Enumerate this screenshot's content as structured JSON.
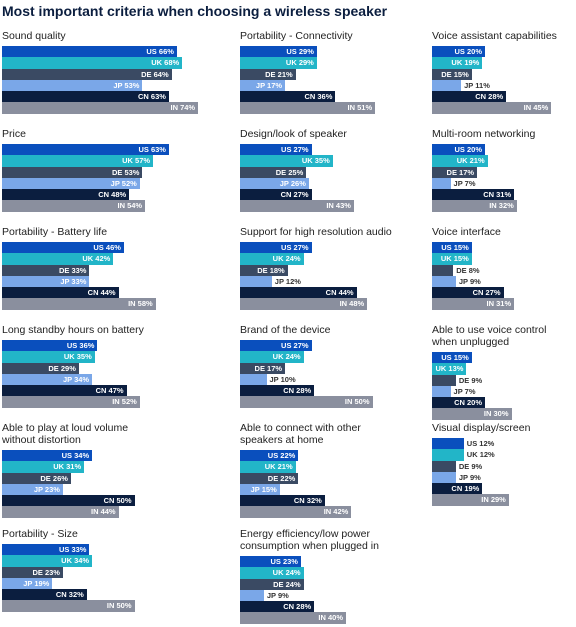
{
  "title": "Most important criteria when choosing a wireless speaker",
  "chart_data": [
    {
      "type": "bar",
      "title": "Sound quality",
      "values": [
        66,
        68,
        64,
        53,
        63,
        74
      ],
      "value_labels": [
        "US 66%",
        "UK 68%",
        "DE 64%",
        "JP 53%",
        "CN 63%",
        "IN 74%"
      ],
      "colors": [
        "#0a4fbd",
        "#22b5c8",
        "#3a4a63",
        "#7aa7e8",
        "#0b1e3f",
        "#8a8f9e"
      ]
    },
    {
      "type": "bar",
      "title": "Price",
      "values": [
        63,
        57,
        53,
        52,
        48,
        54
      ],
      "value_labels": [
        "US 63%",
        "UK 57%",
        "DE 53%",
        "JP 52%",
        "CN 48%",
        "IN 54%"
      ],
      "colors": [
        "#0a4fbd",
        "#22b5c8",
        "#3a4a63",
        "#7aa7e8",
        "#0b1e3f",
        "#8a8f9e"
      ]
    },
    {
      "type": "bar",
      "title": "Portability - Battery life",
      "values": [
        46,
        42,
        33,
        33,
        44,
        58
      ],
      "value_labels": [
        "US 46%",
        "UK 42%",
        "DE 33%",
        "JP 33%",
        "CN 44%",
        "IN 58%"
      ],
      "colors": [
        "#0a4fbd",
        "#22b5c8",
        "#3a4a63",
        "#7aa7e8",
        "#0b1e3f",
        "#8a8f9e"
      ]
    },
    {
      "type": "bar",
      "title": "Long standby hours on battery",
      "values": [
        36,
        35,
        29,
        34,
        47,
        52
      ],
      "value_labels": [
        "US 36%",
        "UK 35%",
        "DE 29%",
        "JP 34%",
        "CN 47%",
        "IN 52%"
      ],
      "colors": [
        "#0a4fbd",
        "#22b5c8",
        "#3a4a63",
        "#7aa7e8",
        "#0b1e3f",
        "#8a8f9e"
      ]
    },
    {
      "type": "bar",
      "title": "Able to play at loud volume\nwithout distortion",
      "values": [
        34,
        31,
        26,
        23,
        50,
        44
      ],
      "value_labels": [
        "US 34%",
        "UK 31%",
        "DE 26%",
        "JP 23%",
        "CN 50%",
        "IN 44%"
      ],
      "colors": [
        "#0a4fbd",
        "#22b5c8",
        "#3a4a63",
        "#7aa7e8",
        "#0b1e3f",
        "#8a8f9e"
      ]
    },
    {
      "type": "bar",
      "title": "Portability - Size",
      "values": [
        33,
        34,
        23,
        19,
        32,
        50
      ],
      "value_labels": [
        "US 33%",
        "UK 34%",
        "DE 23%",
        "JP 19%",
        "CN 32%",
        "IN 50%"
      ],
      "colors": [
        "#0a4fbd",
        "#22b5c8",
        "#3a4a63",
        "#7aa7e8",
        "#0b1e3f",
        "#8a8f9e"
      ]
    },
    {
      "type": "bar",
      "title": "Portability - Connectivity",
      "values": [
        29,
        29,
        21,
        17,
        36,
        51
      ],
      "value_labels": [
        "US 29%",
        "UK 29%",
        "DE 21%",
        "JP 17%",
        "CN 36%",
        "IN 51%"
      ],
      "colors": [
        "#0a4fbd",
        "#22b5c8",
        "#3a4a63",
        "#7aa7e8",
        "#0b1e3f",
        "#8a8f9e"
      ]
    },
    {
      "type": "bar",
      "title": "Design/look of speaker",
      "values": [
        27,
        35,
        25,
        26,
        27,
        43
      ],
      "value_labels": [
        "US 27%",
        "UK 35%",
        "DE 25%",
        "JP 26%",
        "CN 27%",
        "IN 43%"
      ],
      "colors": [
        "#0a4fbd",
        "#22b5c8",
        "#3a4a63",
        "#7aa7e8",
        "#0b1e3f",
        "#8a8f9e"
      ]
    },
    {
      "type": "bar",
      "title": "Support for high resolution audio",
      "values": [
        27,
        24,
        18,
        12,
        44,
        48
      ],
      "value_labels": [
        "US 27%",
        "UK 24%",
        "DE 18%",
        "JP 12%",
        "CN 44%",
        "IN 48%"
      ],
      "colors": [
        "#0a4fbd",
        "#22b5c8",
        "#3a4a63",
        "#7aa7e8",
        "#0b1e3f",
        "#8a8f9e"
      ]
    },
    {
      "type": "bar",
      "title": "Brand of the device",
      "values": [
        27,
        24,
        17,
        10,
        28,
        50
      ],
      "value_labels": [
        "US 27%",
        "UK 24%",
        "DE 17%",
        "JP 10%",
        "CN 28%",
        "IN 50%"
      ],
      "colors": [
        "#0a4fbd",
        "#22b5c8",
        "#3a4a63",
        "#7aa7e8",
        "#0b1e3f",
        "#8a8f9e"
      ]
    },
    {
      "type": "bar",
      "title": "Able to connect with other\nspeakers at home",
      "values": [
        22,
        21,
        22,
        15,
        32,
        42
      ],
      "value_labels": [
        "US 22%",
        "UK 21%",
        "DE 22%",
        "JP 15%",
        "CN 32%",
        "IN 42%"
      ],
      "colors": [
        "#0a4fbd",
        "#22b5c8",
        "#3a4a63",
        "#7aa7e8",
        "#0b1e3f",
        "#8a8f9e"
      ]
    },
    {
      "type": "bar",
      "title": "Energy efficiency/low power\nconsumption when plugged in",
      "values": [
        23,
        24,
        24,
        9,
        28,
        40
      ],
      "value_labels": [
        "US 23%",
        "UK 24%",
        "DE 24%",
        "JP 9%",
        "CN 28%",
        "IN 40%"
      ],
      "colors": [
        "#0a4fbd",
        "#22b5c8",
        "#3a4a63",
        "#7aa7e8",
        "#0b1e3f",
        "#8a8f9e"
      ]
    },
    {
      "type": "bar",
      "title": "Voice assistant capabilities",
      "values": [
        20,
        19,
        15,
        11,
        28,
        45
      ],
      "value_labels": [
        "US 20%",
        "UK 19%",
        "DE 15%",
        "JP 11%",
        "CN 28%",
        "IN 45%"
      ],
      "colors": [
        "#0a4fbd",
        "#22b5c8",
        "#3a4a63",
        "#7aa7e8",
        "#0b1e3f",
        "#8a8f9e"
      ]
    },
    {
      "type": "bar",
      "title": "Multi-room networking",
      "values": [
        20,
        21,
        17,
        7,
        31,
        32
      ],
      "value_labels": [
        "US 20%",
        "UK 21%",
        "DE 17%",
        "JP 7%",
        "CN 31%",
        "IN 32%"
      ],
      "colors": [
        "#0a4fbd",
        "#22b5c8",
        "#3a4a63",
        "#7aa7e8",
        "#0b1e3f",
        "#8a8f9e"
      ]
    },
    {
      "type": "bar",
      "title": "Voice interface",
      "values": [
        15,
        15,
        8,
        9,
        27,
        31
      ],
      "value_labels": [
        "US 15%",
        "UK 15%",
        "DE 8%",
        "JP 9%",
        "CN 27%",
        "IN 31%"
      ],
      "colors": [
        "#0a4fbd",
        "#22b5c8",
        "#3a4a63",
        "#7aa7e8",
        "#0b1e3f",
        "#8a8f9e"
      ]
    },
    {
      "type": "bar",
      "title": "Able to use voice control\nwhen unplugged",
      "values": [
        15,
        13,
        9,
        7,
        20,
        30
      ],
      "value_labels": [
        "US 15%",
        "UK 13%",
        "DE 9%",
        "JP 7%",
        "CN 20%",
        "IN 30%"
      ],
      "colors": [
        "#0a4fbd",
        "#22b5c8",
        "#3a4a63",
        "#7aa7e8",
        "#0b1e3f",
        "#8a8f9e"
      ]
    },
    {
      "type": "bar",
      "title": "Visual display/screen",
      "values": [
        12,
        12,
        9,
        9,
        19,
        29
      ],
      "value_labels": [
        "US 12%",
        "UK 12%",
        "DE 9%",
        "JP 9%",
        "CN 19%",
        "IN 29%"
      ],
      "colors": [
        "#0a4fbd",
        "#22b5c8",
        "#3a4a63",
        "#7aa7e8",
        "#0b1e3f",
        "#8a8f9e"
      ]
    }
  ]
}
